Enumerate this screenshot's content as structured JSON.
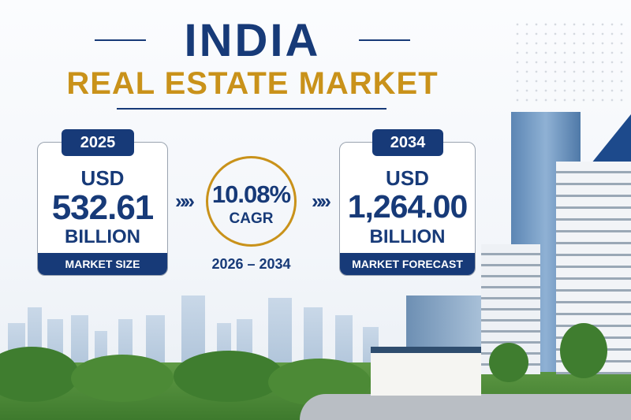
{
  "header": {
    "title": "INDIA",
    "subtitle": "REAL ESTATE MARKET"
  },
  "market_size": {
    "year": "2025",
    "currency": "USD",
    "value": "532.61",
    "unit": "BILLION",
    "label": "MARKET SIZE"
  },
  "cagr": {
    "value": "10.08%",
    "label": "CAGR",
    "period": "2026 – 2034",
    "arrow": "»»"
  },
  "forecast": {
    "year": "2034",
    "currency": "USD",
    "value": "1,264.00",
    "unit": "BILLION",
    "label": "MARKET FORECAST"
  },
  "colors": {
    "navy": "#173a78",
    "gold": "#c9921a"
  }
}
